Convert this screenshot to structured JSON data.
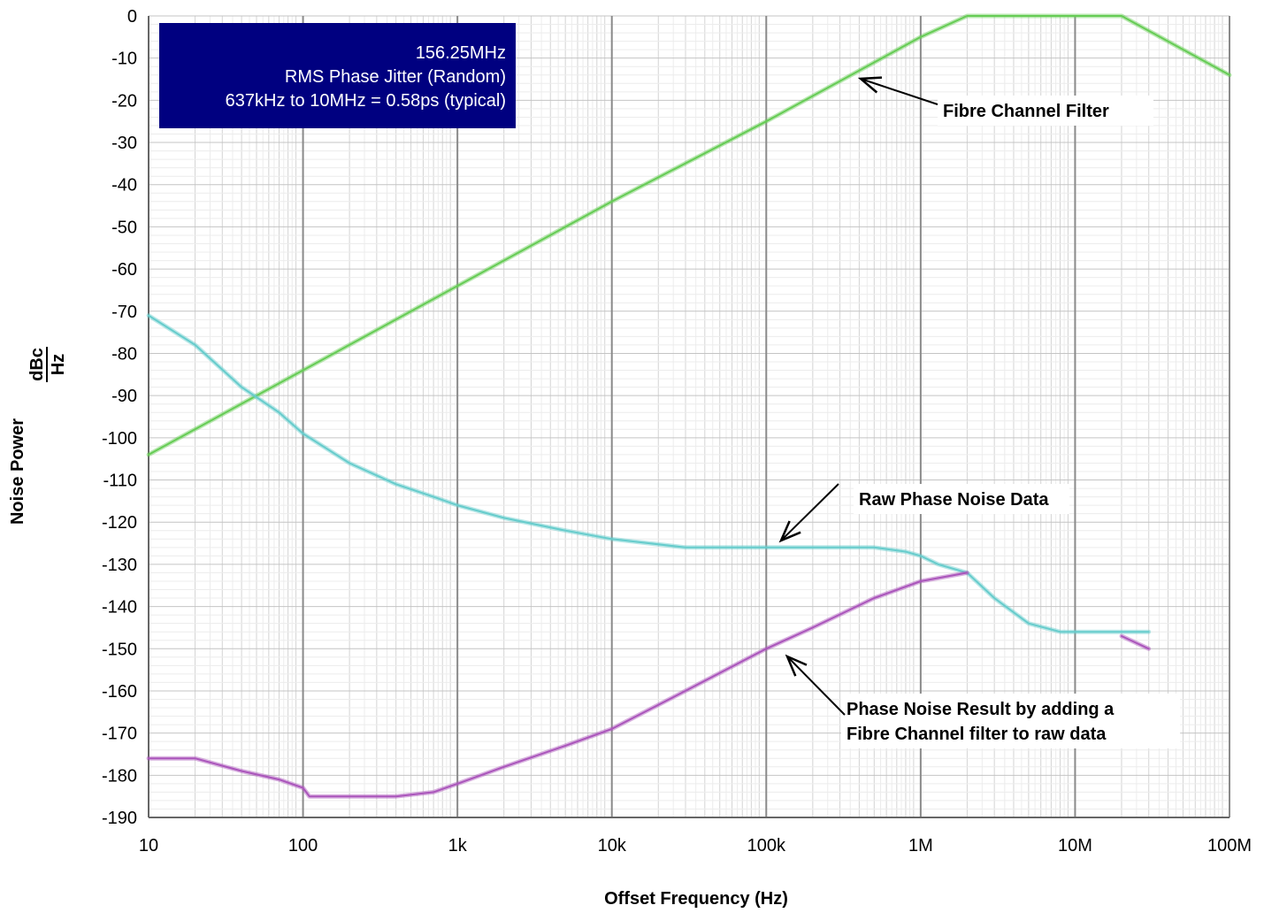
{
  "chart_data": {
    "type": "line",
    "title": "",
    "xlabel": "Offset Frequency (Hz)",
    "ylabel_main": "Noise Power",
    "ylabel_unit_num": "dBc",
    "ylabel_unit_den": "Hz",
    "x_scale": "log",
    "xlim": [
      10,
      100000000
    ],
    "ylim": [
      -190,
      0
    ],
    "grid": true,
    "x_ticks": [
      {
        "value": 10,
        "label": "10"
      },
      {
        "value": 100,
        "label": "100"
      },
      {
        "value": 1000,
        "label": "1k"
      },
      {
        "value": 10000,
        "label": "10k"
      },
      {
        "value": 100000,
        "label": "100k"
      },
      {
        "value": 1000000,
        "label": "1M"
      },
      {
        "value": 10000000,
        "label": "10M"
      },
      {
        "value": 100000000,
        "label": "100M"
      }
    ],
    "y_ticks": [
      0,
      -10,
      -20,
      -30,
      -40,
      -50,
      -60,
      -70,
      -80,
      -90,
      -100,
      -110,
      -120,
      -130,
      -140,
      -150,
      -160,
      -170,
      -180,
      -190
    ],
    "info_box": {
      "lines": [
        "156.25MHz",
        "RMS Phase Jitter (Random)",
        "637kHz to 10MHz = 0.58ps (typical)"
      ],
      "color": "#000080"
    },
    "series": [
      {
        "key": "filter",
        "color": "#66cc55",
        "points": [
          [
            10,
            -104
          ],
          [
            100,
            -84
          ],
          [
            1000,
            -64
          ],
          [
            10000,
            -44
          ],
          [
            100000,
            -25
          ],
          [
            1000000,
            -5
          ],
          [
            2000000,
            0
          ],
          [
            20000000,
            0
          ],
          [
            100000000,
            -14
          ]
        ]
      },
      {
        "key": "raw",
        "color": "#66cccc",
        "points": [
          [
            10,
            -71
          ],
          [
            20,
            -78
          ],
          [
            40,
            -88
          ],
          [
            70,
            -94
          ],
          [
            100,
            -99
          ],
          [
            200,
            -106
          ],
          [
            400,
            -111
          ],
          [
            700,
            -114
          ],
          [
            1000,
            -116
          ],
          [
            2000,
            -119
          ],
          [
            5000,
            -122
          ],
          [
            10000,
            -124
          ],
          [
            30000,
            -126
          ],
          [
            100000,
            -126
          ],
          [
            200000,
            -126
          ],
          [
            500000,
            -126
          ],
          [
            800000,
            -127
          ],
          [
            1000000,
            -128
          ],
          [
            1300000,
            -130
          ],
          [
            2000000,
            -132
          ],
          [
            3000000,
            -138
          ],
          [
            5000000,
            -144
          ],
          [
            8000000,
            -146
          ],
          [
            10000000,
            -146
          ],
          [
            20000000,
            -146
          ],
          [
            30000000,
            -146
          ]
        ]
      },
      {
        "key": "result",
        "color": "#aa55bb",
        "points": [
          [
            10,
            -176
          ],
          [
            20,
            -176
          ],
          [
            40,
            -179
          ],
          [
            70,
            -181
          ],
          [
            100,
            -183
          ],
          [
            110,
            -185
          ],
          [
            200,
            -185
          ],
          [
            400,
            -185
          ],
          [
            700,
            -184
          ],
          [
            1000,
            -182
          ],
          [
            2000,
            -178
          ],
          [
            5000,
            -173
          ],
          [
            10000,
            -169
          ],
          [
            30000,
            -160
          ],
          [
            100000,
            -150
          ],
          [
            200000,
            -145
          ],
          [
            500000,
            -138
          ],
          [
            1000000,
            -134
          ],
          [
            2000000,
            -132
          ]
        ]
      },
      {
        "key": "result_tail",
        "color": "#aa55bb",
        "points": [
          [
            20000000,
            -147
          ],
          [
            30000000,
            -150
          ]
        ]
      }
    ],
    "annotations": [
      {
        "key": "filter",
        "lines": [
          "Fibre Channel Filter"
        ],
        "text_x": 1066,
        "text_y": 132,
        "arrow_from": [
          1060,
          118
        ],
        "arrow_to": [
          973,
          89
        ]
      },
      {
        "key": "raw",
        "lines": [
          "Raw Phase Noise Data"
        ],
        "text_x": 971,
        "text_y": 571,
        "arrow_from": [
          948,
          547
        ],
        "arrow_to": [
          883,
          611
        ]
      },
      {
        "key": "result",
        "lines": [
          "Phase Noise Result by adding a",
          "Fibre Channel filter to raw data"
        ],
        "text_x": 957,
        "text_y": 808,
        "arrow_from": [
          955,
          808
        ],
        "arrow_to": [
          890,
          742
        ]
      }
    ]
  }
}
